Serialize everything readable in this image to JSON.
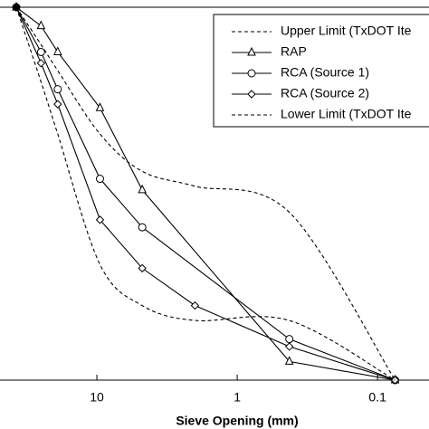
{
  "chart_data": {
    "type": "line",
    "x_label": "Sieve Opening (mm)",
    "xscale": "log",
    "legend": "upper right",
    "x": [
      37.5,
      25,
      19,
      9.5,
      4.75,
      2,
      0.425,
      0.075
    ],
    "xlim": [
      49,
      0.043
    ],
    "xticks": [
      10,
      1,
      0.1
    ],
    "ylim": [
      0,
      100
    ],
    "series": [
      {
        "name": "Upper Limit (TxDOT Ite",
        "color": "#000000",
        "dashed": true,
        "smooth": true,
        "marker": null,
        "values": [
          100,
          90,
          83,
          66,
          56,
          52,
          45,
          0
        ]
      },
      {
        "name": "RAP",
        "color": "#000000",
        "dashed": false,
        "smooth": false,
        "marker": "triangle",
        "values": [
          100,
          95,
          88,
          73,
          51,
          null,
          5,
          0
        ]
      },
      {
        "name": "RCA (Source 1)",
        "color": "#000000",
        "dashed": false,
        "smooth": false,
        "marker": "circle",
        "values": [
          100,
          88,
          78,
          54,
          41,
          null,
          11,
          0
        ]
      },
      {
        "name": "RCA (Source 2)",
        "color": "#000000",
        "dashed": false,
        "smooth": false,
        "marker": "diamond",
        "values": [
          100,
          85,
          74,
          43,
          30,
          20,
          9,
          0
        ]
      },
      {
        "name": "Lower Limit (TxDOT Ite",
        "color": "#000000",
        "dashed": true,
        "smooth": true,
        "marker": null,
        "values": [
          100,
          80,
          66,
          31,
          20,
          16,
          16,
          0
        ]
      }
    ]
  }
}
